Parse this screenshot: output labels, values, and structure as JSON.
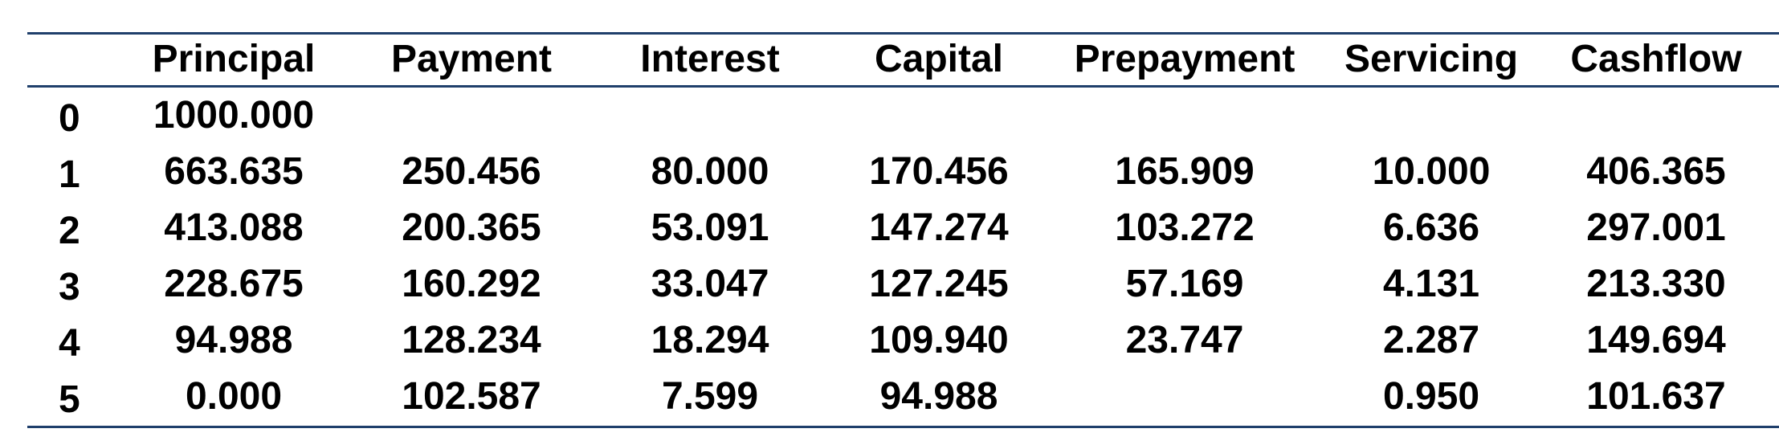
{
  "table": {
    "columns": [
      "Principal",
      "Payment",
      "Interest",
      "Capital",
      "Prepayment",
      "Servicing",
      "Cashflow"
    ],
    "rows": [
      {
        "index": "0",
        "cells": [
          "1000.000",
          "",
          "",
          "",
          "",
          "",
          ""
        ]
      },
      {
        "index": "1",
        "cells": [
          "663.635",
          "250.456",
          "80.000",
          "170.456",
          "165.909",
          "10.000",
          "406.365"
        ]
      },
      {
        "index": "2",
        "cells": [
          "413.088",
          "200.365",
          "53.091",
          "147.274",
          "103.272",
          "6.636",
          "297.001"
        ]
      },
      {
        "index": "3",
        "cells": [
          "228.675",
          "160.292",
          "33.047",
          "127.245",
          "57.169",
          "4.131",
          "213.330"
        ]
      },
      {
        "index": "4",
        "cells": [
          "94.988",
          "128.234",
          "18.294",
          "109.940",
          "23.747",
          "2.287",
          "149.694"
        ]
      },
      {
        "index": "5",
        "cells": [
          "0.000",
          "102.587",
          "7.599",
          "94.988",
          "",
          "0.950",
          "101.637"
        ]
      }
    ]
  }
}
